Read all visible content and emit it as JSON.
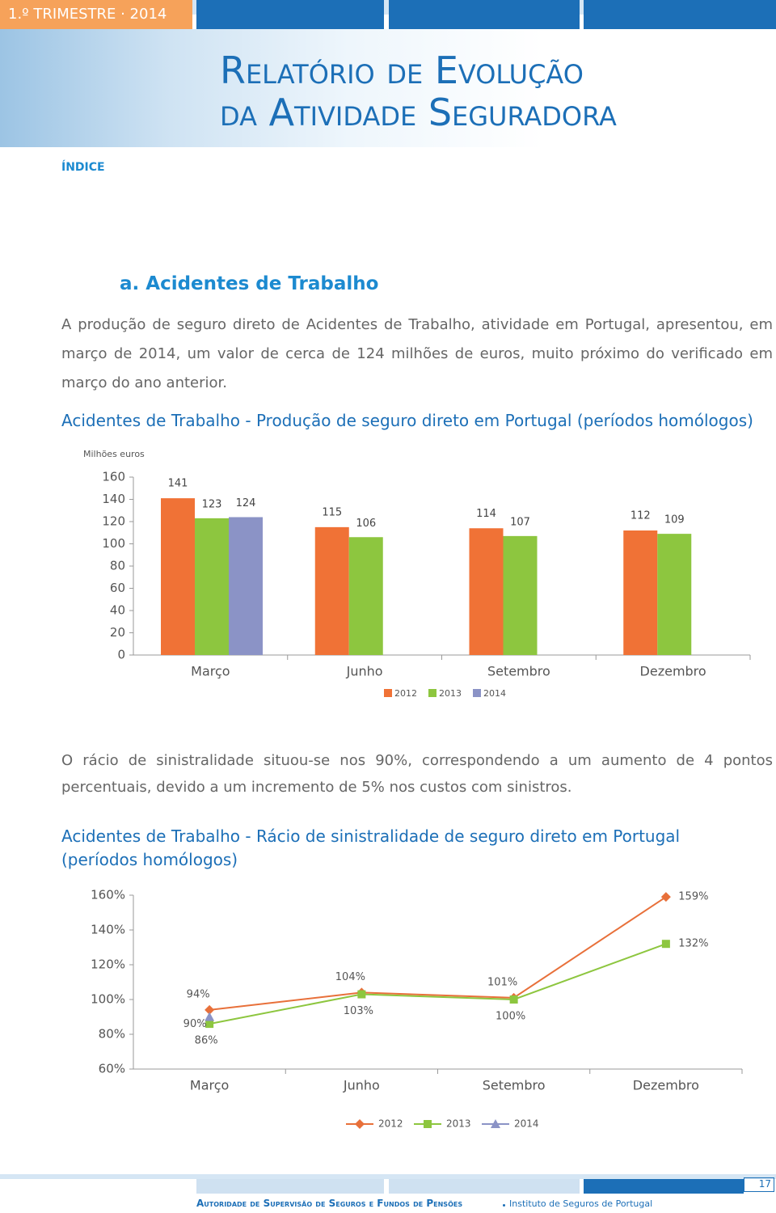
{
  "header": {
    "quarter": "1.º TRIMESTRE · 2014",
    "title_line1": "Relatório de Evolução",
    "title_line2": "da Atividade Seguradora"
  },
  "nav": {
    "index": "ÍNDICE"
  },
  "section": {
    "heading": "a. Acidentes de Trabalho",
    "paragraph1": "A produção de seguro direto de Acidentes de Trabalho, atividade em Portugal, apresentou, em março de 2014, um valor de cerca de 124 milhões de euros, muito próximo do verificado em março do ano anterior.",
    "paragraph2": "O rácio de sinistralidade situou-se nos 90%, correspondendo a um aumento de 4 pontos percentuais, devido a um incremento de 5% nos custos com sinistros."
  },
  "chart_data": [
    {
      "type": "bar",
      "title": "Acidentes de Trabalho - Produção de seguro direto em Portugal (períodos homólogos)",
      "y_label": "Milhões euros",
      "categories": [
        "Março",
        "Junho",
        "Setembro",
        "Dezembro"
      ],
      "series": [
        {
          "name": "2012",
          "color": "#f07236",
          "values": [
            141,
            115,
            114,
            112
          ]
        },
        {
          "name": "2013",
          "color": "#8dc63f",
          "values": [
            123,
            106,
            107,
            109
          ]
        },
        {
          "name": "2014",
          "color": "#8b93c6",
          "values": [
            124,
            null,
            null,
            null
          ]
        }
      ],
      "ylim": [
        0,
        160
      ],
      "yticks": [
        0,
        20,
        40,
        60,
        80,
        100,
        120,
        140,
        160
      ],
      "grid": false,
      "legend": "bottom"
    },
    {
      "type": "line",
      "title": "Acidentes de Trabalho - Rácio de sinistralidade de seguro direto em Portugal (períodos homólogos)",
      "categories": [
        "Março",
        "Junho",
        "Setembro",
        "Dezembro"
      ],
      "series": [
        {
          "name": "2012",
          "color": "#e8703a",
          "marker": "diamond",
          "values": [
            94,
            104,
            101,
            159
          ],
          "value_labels": [
            "94%",
            "104%",
            "101%",
            "159%"
          ]
        },
        {
          "name": "2013",
          "color": "#8dc63f",
          "marker": "square",
          "values": [
            86,
            103,
            100,
            132
          ],
          "value_labels": [
            "86%",
            "103%",
            "100%",
            "132%"
          ]
        },
        {
          "name": "2014",
          "color": "#8b93c6",
          "marker": "triangle",
          "values": [
            90,
            null,
            null,
            null
          ],
          "value_labels": [
            "90%",
            null,
            null,
            null
          ]
        }
      ],
      "ylim": [
        60,
        160
      ],
      "yticks": [
        {
          "value": 60,
          "label": "60%"
        },
        {
          "value": 80,
          "label": "80%"
        },
        {
          "value": 100,
          "label": "100%"
        },
        {
          "value": 120,
          "label": "120%"
        },
        {
          "value": 140,
          "label": "140%"
        },
        {
          "value": 160,
          "label": "160%"
        }
      ],
      "grid": false,
      "legend": "bottom"
    }
  ],
  "footer": {
    "page_number": 17,
    "authority": "Autoridade de Supervisão de Seguros e Fundos de Pensões",
    "institute": "Instituto de Seguros de Portugal"
  }
}
